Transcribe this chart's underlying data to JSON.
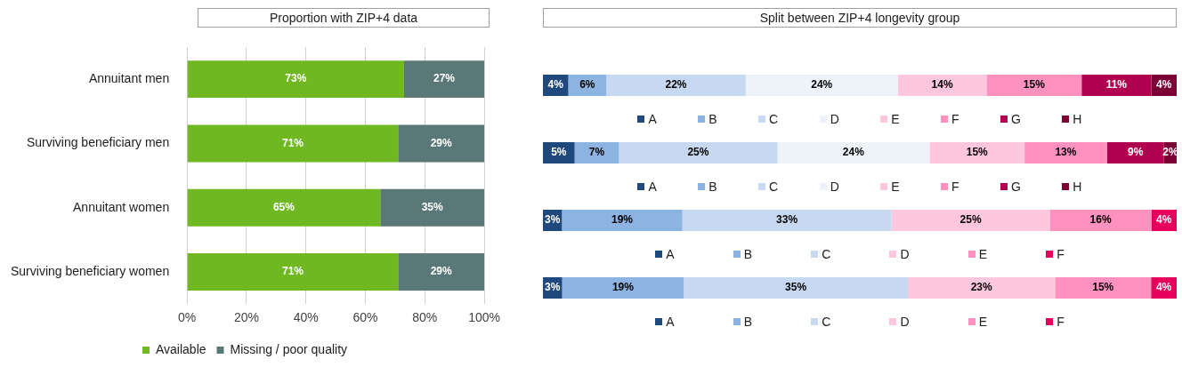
{
  "chart_data": [
    {
      "type": "bar",
      "orientation": "horizontal",
      "stacked": true,
      "title": "Proportion with ZIP+4 data",
      "categories": [
        "Annuitant men",
        "Surviving beneficiary men",
        "Annuitant women",
        "Surviving beneficiary women"
      ],
      "xlim": [
        0,
        100
      ],
      "xticks": [
        {
          "value": 0,
          "label": "0%"
        },
        {
          "value": 20,
          "label": "20%"
        },
        {
          "value": 40,
          "label": "40%"
        },
        {
          "value": 60,
          "label": "60%"
        },
        {
          "value": 80,
          "label": "80%"
        },
        {
          "value": 100,
          "label": "100%"
        }
      ],
      "grid": "x",
      "legend": "bottom",
      "series": [
        {
          "name": "Available",
          "color": "#70b822",
          "values": [
            73,
            71,
            65,
            71
          ],
          "value_labels": [
            "73%",
            "71%",
            "65%",
            "71%"
          ]
        },
        {
          "name": "Missing / poor quality",
          "color": "#5a7878",
          "values": [
            27,
            29,
            35,
            29
          ],
          "value_labels": [
            "27%",
            "29%",
            "35%",
            "29%"
          ]
        }
      ]
    },
    {
      "type": "bar",
      "orientation": "horizontal",
      "stacked": true,
      "title": "Split between ZIP+4 longevity group",
      "categories": [
        null
      ],
      "tick_labels": false,
      "legend": "bottom",
      "series": [
        {
          "name": "A",
          "color": "#1f497d",
          "values": [
            4
          ],
          "value_labels": [
            "4%"
          ]
        },
        {
          "name": "B",
          "color": "#8db3e2",
          "values": [
            6
          ],
          "value_labels": [
            "6%"
          ]
        },
        {
          "name": "C",
          "color": "#c6d9f0",
          "values": [
            22
          ],
          "value_labels": [
            "22%"
          ]
        },
        {
          "name": "D",
          "color": "#eef3fa",
          "values": [
            24
          ],
          "value_labels": [
            "24%"
          ]
        },
        {
          "name": "E",
          "color": "#ffc7de",
          "values": [
            14
          ],
          "value_labels": [
            "14%"
          ]
        },
        {
          "name": "F",
          "color": "#ff91c0",
          "values": [
            15
          ],
          "value_labels": [
            "15%"
          ]
        },
        {
          "name": "G",
          "color": "#b0004f",
          "values": [
            11
          ],
          "value_labels": [
            "11%"
          ]
        },
        {
          "name": "H",
          "color": "#7a0036",
          "values": [
            4
          ],
          "value_labels": [
            "4%"
          ]
        }
      ]
    },
    {
      "type": "bar",
      "orientation": "horizontal",
      "stacked": true,
      "categories": [
        null
      ],
      "tick_labels": false,
      "legend": "bottom",
      "series": [
        {
          "name": "A",
          "color": "#1f497d",
          "values": [
            5
          ],
          "value_labels": [
            "5%"
          ]
        },
        {
          "name": "B",
          "color": "#8db3e2",
          "values": [
            7
          ],
          "value_labels": [
            "7%"
          ]
        },
        {
          "name": "C",
          "color": "#c6d9f0",
          "values": [
            25
          ],
          "value_labels": [
            "25%"
          ]
        },
        {
          "name": "D",
          "color": "#eef3fa",
          "values": [
            24
          ],
          "value_labels": [
            "24%"
          ]
        },
        {
          "name": "E",
          "color": "#ffc7de",
          "values": [
            15
          ],
          "value_labels": [
            "15%"
          ]
        },
        {
          "name": "F",
          "color": "#ff91c0",
          "values": [
            13
          ],
          "value_labels": [
            "13%"
          ]
        },
        {
          "name": "G",
          "color": "#b0004f",
          "values": [
            9
          ],
          "value_labels": [
            "9%"
          ]
        },
        {
          "name": "H",
          "color": "#7a0036",
          "values": [
            2
          ],
          "value_labels": [
            "2%"
          ]
        }
      ]
    },
    {
      "type": "bar",
      "orientation": "horizontal",
      "stacked": true,
      "categories": [
        null
      ],
      "tick_labels": false,
      "legend": "bottom",
      "series": [
        {
          "name": "A",
          "color": "#1f497d",
          "values": [
            3
          ],
          "value_labels": [
            "3%"
          ]
        },
        {
          "name": "B",
          "color": "#8db3e2",
          "values": [
            19
          ],
          "value_labels": [
            "19%"
          ]
        },
        {
          "name": "C",
          "color": "#c6d9f0",
          "values": [
            33
          ],
          "value_labels": [
            "33%"
          ]
        },
        {
          "name": "D",
          "color": "#ffc7de",
          "values": [
            25
          ],
          "value_labels": [
            "25%"
          ]
        },
        {
          "name": "E",
          "color": "#ff91c0",
          "values": [
            16
          ],
          "value_labels": [
            "16%"
          ]
        },
        {
          "name": "F",
          "color": "#e8005f",
          "values": [
            4
          ],
          "value_labels": [
            "4%"
          ]
        }
      ]
    },
    {
      "type": "bar",
      "orientation": "horizontal",
      "stacked": true,
      "categories": [
        null
      ],
      "tick_labels": false,
      "legend": "bottom",
      "series": [
        {
          "name": "A",
          "color": "#1f497d",
          "values": [
            3
          ],
          "value_labels": [
            "3%"
          ]
        },
        {
          "name": "B",
          "color": "#8db3e2",
          "values": [
            19
          ],
          "value_labels": [
            "19%"
          ]
        },
        {
          "name": "C",
          "color": "#c6d9f0",
          "values": [
            35
          ],
          "value_labels": [
            "35%"
          ]
        },
        {
          "name": "D",
          "color": "#ffc7de",
          "values": [
            23
          ],
          "value_labels": [
            "23%"
          ]
        },
        {
          "name": "E",
          "color": "#ff91c0",
          "values": [
            15
          ],
          "value_labels": [
            "15%"
          ]
        },
        {
          "name": "F",
          "color": "#e8005f",
          "values": [
            4
          ],
          "value_labels": [
            "4%"
          ]
        }
      ]
    }
  ]
}
